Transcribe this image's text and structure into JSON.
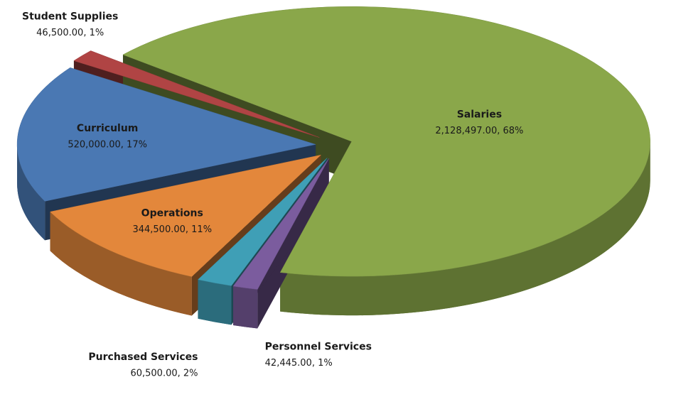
{
  "chart_data": {
    "type": "pie3d",
    "categories": [
      "Salaries",
      "Personnel Services",
      "Purchased Services",
      "Operations",
      "Curriculum",
      "Student Supplies"
    ],
    "values": [
      2128497,
      42445,
      60500,
      344500,
      520000,
      46500
    ],
    "value_labels": [
      "2,128,497.00, 68%",
      "42,445.00, 1%",
      "60,500.00, 2%",
      "344,500.00, 11%",
      "520,000.00, 17%",
      "46,500.00, 1%"
    ],
    "colors": [
      "#8aa74a",
      "#7b5c9e",
      "#3f9fb6",
      "#e3873b",
      "#4a78b3",
      "#b04444"
    ]
  }
}
